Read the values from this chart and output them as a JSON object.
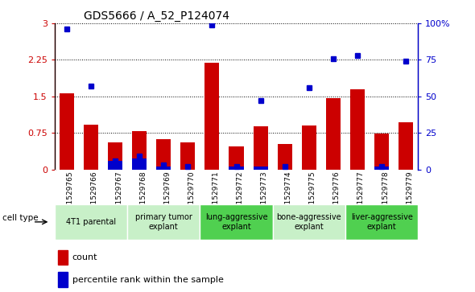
{
  "title": "GDS5666 / A_52_P124074",
  "samples": [
    "GSM1529765",
    "GSM1529766",
    "GSM1529767",
    "GSM1529768",
    "GSM1529769",
    "GSM1529770",
    "GSM1529771",
    "GSM1529772",
    "GSM1529773",
    "GSM1529774",
    "GSM1529775",
    "GSM1529776",
    "GSM1529777",
    "GSM1529778",
    "GSM1529779"
  ],
  "counts": [
    1.57,
    0.92,
    0.55,
    0.78,
    0.62,
    0.55,
    2.19,
    0.47,
    0.88,
    0.52,
    0.9,
    1.47,
    1.65,
    0.73,
    0.97
  ],
  "percentiles_pct": [
    96,
    57,
    6,
    9,
    3,
    2,
    99,
    2,
    47,
    2,
    56,
    76,
    78,
    2,
    74
  ],
  "blue_bar_heights": [
    0,
    0,
    0.17,
    0.22,
    0.06,
    0,
    0,
    0.06,
    0.06,
    0,
    0,
    0,
    0,
    0.06,
    0
  ],
  "cell_types": [
    {
      "label": "4T1 parental",
      "start": 0,
      "end": 3,
      "color": "#c8f0c8"
    },
    {
      "label": "primary tumor\nexplant",
      "start": 3,
      "end": 6,
      "color": "#c8f0c8"
    },
    {
      "label": "lung-aggressive\nexplant",
      "start": 6,
      "end": 9,
      "color": "#50d050"
    },
    {
      "label": "bone-aggressive\nexplant",
      "start": 9,
      "end": 12,
      "color": "#c8f0c8"
    },
    {
      "label": "liver-aggressive\nexplant",
      "start": 12,
      "end": 15,
      "color": "#50d050"
    }
  ],
  "ylim_left": [
    0,
    3.0
  ],
  "ylim_right": [
    0,
    100
  ],
  "yticks_left": [
    0,
    0.75,
    1.5,
    2.25,
    3.0
  ],
  "ytick_labels_left": [
    "0",
    "0.75",
    "1.5",
    "2.25",
    "3"
  ],
  "yticks_right": [
    0,
    25,
    50,
    75,
    100
  ],
  "ytick_labels_right": [
    "0",
    "25",
    "50",
    "75",
    "100%"
  ],
  "bar_color": "#cc0000",
  "blue_color": "#0000cc",
  "col_header_bg": "#c8c8c8",
  "cell_type_bg": "#e8e8e8",
  "legend_count_label": "count",
  "legend_pct_label": "percentile rank within the sample",
  "cell_type_label": "cell type"
}
